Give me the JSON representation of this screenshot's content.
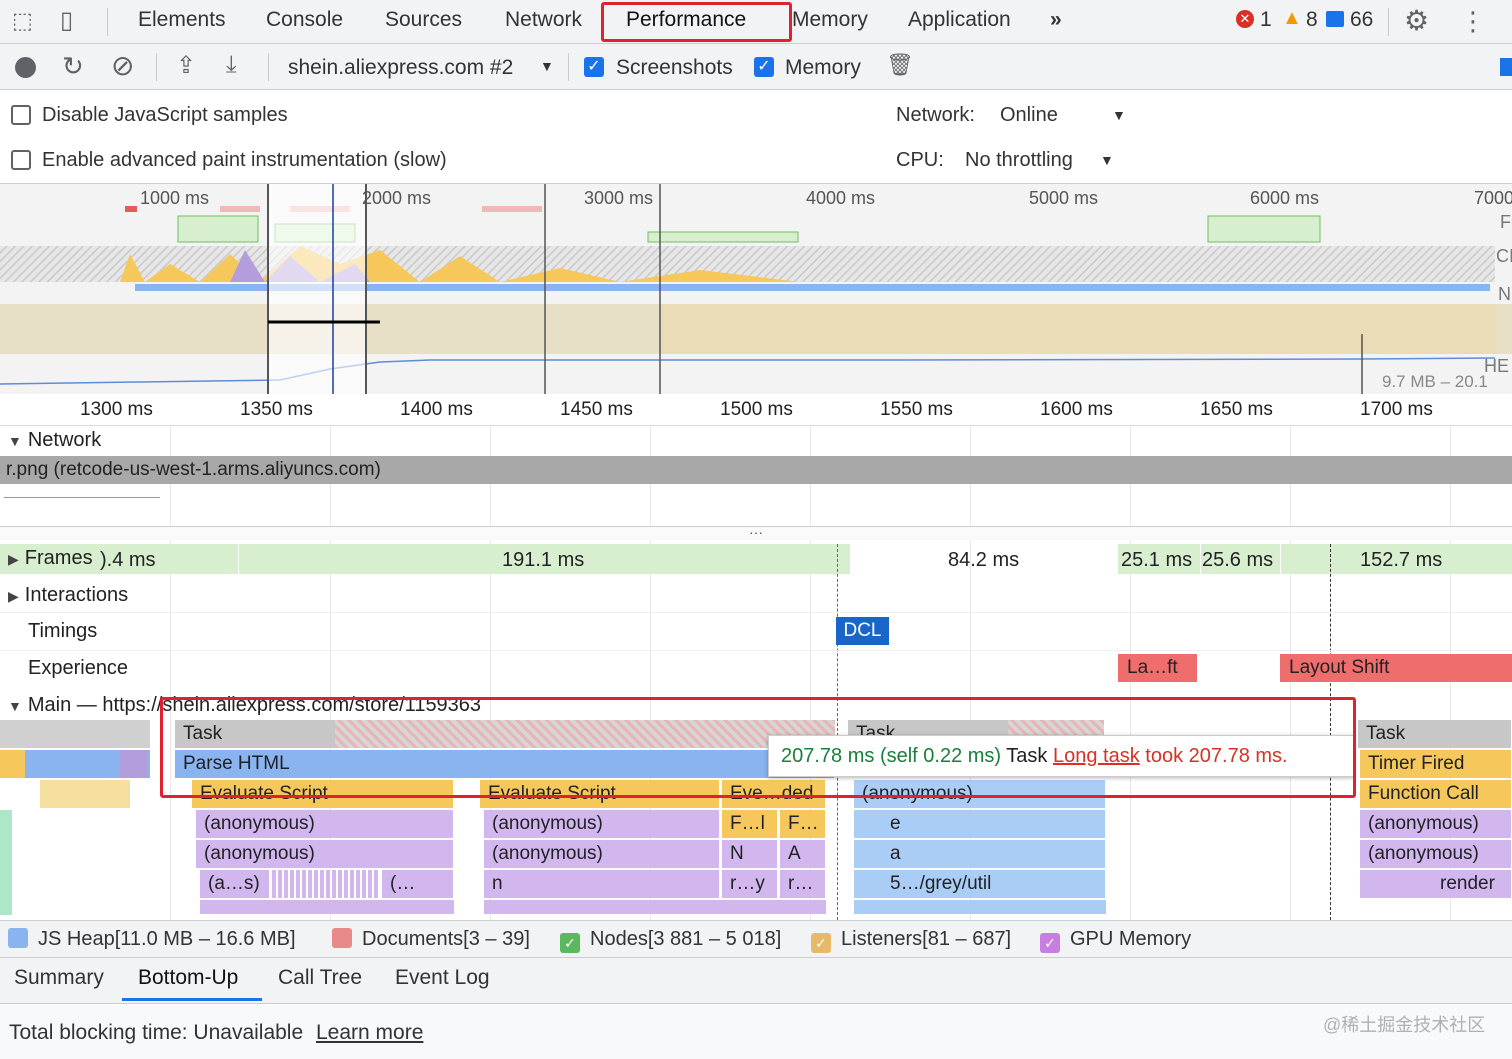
{
  "tabs": {
    "items": [
      "Elements",
      "Console",
      "Sources",
      "Network",
      "Performance",
      "Memory",
      "Application"
    ],
    "more": "»",
    "errors": "1",
    "warnings": "8",
    "messages": "66"
  },
  "toolbar": {
    "target": "shein.aliexpress.com #2",
    "screenshots_label": "Screenshots",
    "memory_label": "Memory"
  },
  "settings": {
    "disable_js_samples": "Disable JavaScript samples",
    "advanced_paint": "Enable advanced paint instrumentation (slow)",
    "network_label": "Network:",
    "network_value": "Online",
    "cpu_label": "CPU:",
    "cpu_value": "No throttling"
  },
  "overview": {
    "ticks": [
      "1000 ms",
      "2000 ms",
      "3000 ms",
      "4000 ms",
      "5000 ms",
      "6000 ms",
      "7000"
    ],
    "heap_range": "9.7 MB – 20.1",
    "side_labels": [
      "F",
      "CI",
      "N",
      "HE"
    ]
  },
  "ruler": {
    "ticks": [
      "1300 ms",
      "1350 ms",
      "1400 ms",
      "1450 ms",
      "1500 ms",
      "1550 ms",
      "1600 ms",
      "1650 ms",
      "1700 ms"
    ]
  },
  "tracks": {
    "network": "Network",
    "network_row": "r.png (retcode-us-west-1.arms.aliyuncs.com)",
    "frames": "Frames",
    "frame_values": [
      ").4 ms",
      "191.1 ms",
      "84.2 ms",
      "25.1 ms",
      "25.6 ms",
      "152.7 ms"
    ],
    "interactions": "Interactions",
    "timings": "Timings",
    "dcl": "DCL",
    "experience": "Experience",
    "layout_shift_short": "La…ft",
    "layout_shift": "Layout Shift",
    "main": "Main — https://shein.aliexpress.com/store/1159363"
  },
  "flame": {
    "task": "Task",
    "task2": "Task",
    "task3": "Task",
    "parse_html": "Parse HTML",
    "timer_fired": "Timer Fired",
    "evaluate_script": "Evaluate Script",
    "evaluate_script2": "Evaluate Script",
    "eve_ded": "Eve…ded",
    "anonymous": "(anonymous)",
    "function_call": "Function Call",
    "fl": "F…l",
    "fdot": "F…",
    "e": "e",
    "N": "N",
    "A": "A",
    "a": "a",
    "as": "(a…s)",
    "paren": "(…",
    "n": "n",
    "ry": "r…y",
    "rdot": "r…",
    "grey_util": "5…/grey/util",
    "render": "render"
  },
  "tooltip": {
    "time": "207.78 ms (self 0.22 ms)",
    "name": "Task",
    "link": "Long task",
    "rest": "took 207.78 ms."
  },
  "legend": {
    "js_heap": "JS Heap[11.0 MB – 16.6 MB]",
    "documents": "Documents[3 – 39]",
    "nodes": "Nodes[3 881 – 5 018]",
    "listeners": "Listeners[81 – 687]",
    "gpu": "GPU Memory"
  },
  "bottom_tabs": [
    "Summary",
    "Bottom-Up",
    "Call Tree",
    "Event Log"
  ],
  "status": {
    "text": "Total blocking time: Unavailable",
    "link": "Learn more",
    "watermark": "@稀土掘金技术社区"
  },
  "colors": {
    "accent": "#1a73e8",
    "highlight": "#e0212e",
    "task_grey": "#c7c7c7",
    "script_yellow": "#f6c85b",
    "parse_blue": "#8ab4f0",
    "js_purple": "#d2b7ee"
  }
}
